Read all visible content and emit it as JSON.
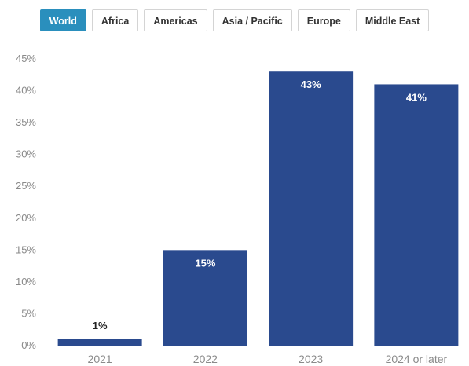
{
  "tabs": [
    {
      "label": "World",
      "active": true
    },
    {
      "label": "Africa",
      "active": false
    },
    {
      "label": "Americas",
      "active": false
    },
    {
      "label": "Asia / Pacific",
      "active": false
    },
    {
      "label": "Europe",
      "active": false
    },
    {
      "label": "Middle East",
      "active": false
    }
  ],
  "colors": {
    "bar": "#2a4a8e",
    "tab_active": "#2a8fbd",
    "label_inside": "#ffffff",
    "label_outside": "#222222"
  },
  "chart_data": {
    "type": "bar",
    "categories": [
      "2021",
      "2022",
      "2023",
      "2024 or later"
    ],
    "values": [
      1,
      15,
      43,
      41
    ],
    "data_labels": [
      "1%",
      "15%",
      "43%",
      "41%"
    ],
    "yticks": [
      "0%",
      "5%",
      "10%",
      "15%",
      "20%",
      "25%",
      "30%",
      "35%",
      "40%",
      "45%"
    ],
    "ylim": [
      0,
      45
    ],
    "grid": false,
    "legend": "none"
  }
}
